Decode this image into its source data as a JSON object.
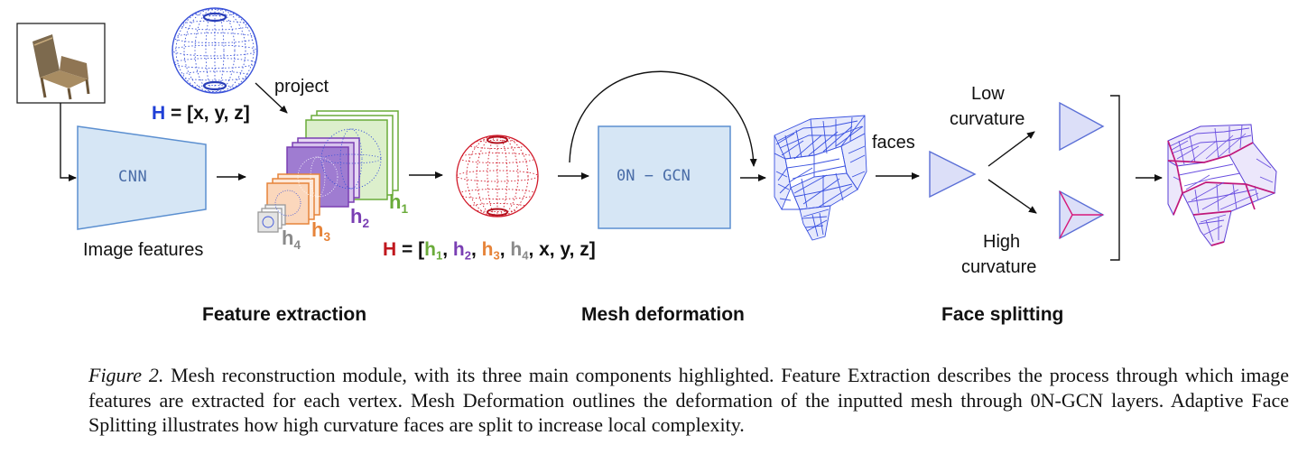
{
  "labels": {
    "cnn": "CNN",
    "gcn": "0N − GCN",
    "project": "project",
    "image_features": "Image features",
    "faces": "faces",
    "low_curvature_line1": "Low",
    "low_curvature_line2": "curvature",
    "high_curvature_line1": "High",
    "high_curvature_line2": "curvature",
    "h_letter": "h",
    "sub1": "1",
    "sub2": "2",
    "sub3": "3",
    "sub4": "4"
  },
  "formula1": {
    "H": "H",
    "rest": " = [x, y, z]"
  },
  "formula2": {
    "H": "H",
    "eq": " = [",
    "h": "h",
    "s1": "1",
    "s2": "2",
    "s3": "3",
    "s4": "4",
    "comma": ", ",
    "tail": ", x, y, z]"
  },
  "sections": {
    "feature_extraction": "Feature extraction",
    "mesh_deformation": "Mesh deformation",
    "face_splitting": "Face splitting"
  },
  "caption": {
    "figure_label": "Figure 2.",
    "text": " Mesh reconstruction module, with its three main components highlighted. Feature Extraction describes the process through which image features are extracted for each vertex. Mesh Deformation outlines the deformation of the inputted mesh through 0N-GCN layers. Adaptive Face Splitting illustrates how high curvature faces are split to increase local complexity."
  },
  "colors": {
    "blue": "#1f3fd6",
    "red": "#c0171d",
    "green": "#6aab3a",
    "purple": "#7a3fb3",
    "orange": "#e6843a",
    "gray": "#8a8a8a",
    "box_fill": "#d6e6f5",
    "box_stroke": "#5b8fd0"
  }
}
